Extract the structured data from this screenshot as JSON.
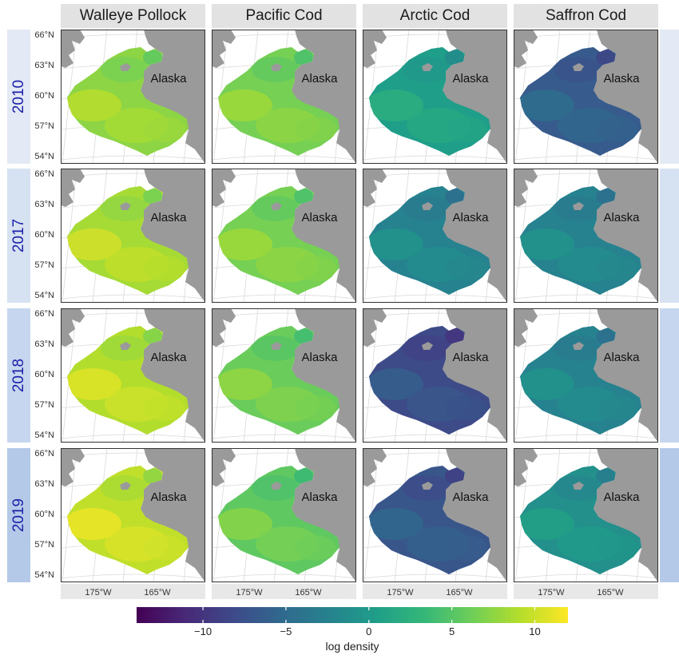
{
  "columns": [
    "Walleye Pollock",
    "Pacific Cod",
    "Arctic Cod",
    "Saffron Cod"
  ],
  "years": [
    "2010",
    "2017",
    "2018",
    "2019"
  ],
  "region_label": "Alaska",
  "lat_ticks": [
    "66°N",
    "63°N",
    "60°N",
    "57°N",
    "54°N"
  ],
  "lon_ticks": [
    "175°W",
    "165°W"
  ],
  "legend": {
    "title": "log density",
    "ticks": [
      "−10",
      "−5",
      "0",
      "5",
      "10"
    ],
    "tick_values": [
      -10,
      -5,
      0,
      5,
      10
    ],
    "range": [
      -14,
      12
    ],
    "palette": "viridis",
    "colors": [
      "#440154",
      "#482878",
      "#3e4989",
      "#31688e",
      "#26828e",
      "#1f9e89",
      "#35b779",
      "#6ece58",
      "#b5de2b",
      "#fde725"
    ]
  },
  "colors": {
    "land": "#9a9a9a",
    "strip": "#e2e2e2",
    "row_strip_2010": "#e3eaf6",
    "row_strip_2017": "#d6e1f2",
    "row_strip_2018": "#c6d6ee",
    "row_strip_2019": "#b4c8e8",
    "row_label": "#1a1fa8"
  },
  "map_levels": {
    "Walleye Pollock": [
      7.5,
      8.5,
      9.0,
      9.5
    ],
    "Pacific Cod": [
      6.5,
      6.5,
      6.0,
      5.5
    ],
    "Arctic Cod": [
      0.5,
      -2.5,
      -8.0,
      -7.0
    ],
    "Saffron Cod": [
      -6.5,
      -2.5,
      -2.5,
      -1.0
    ]
  }
}
